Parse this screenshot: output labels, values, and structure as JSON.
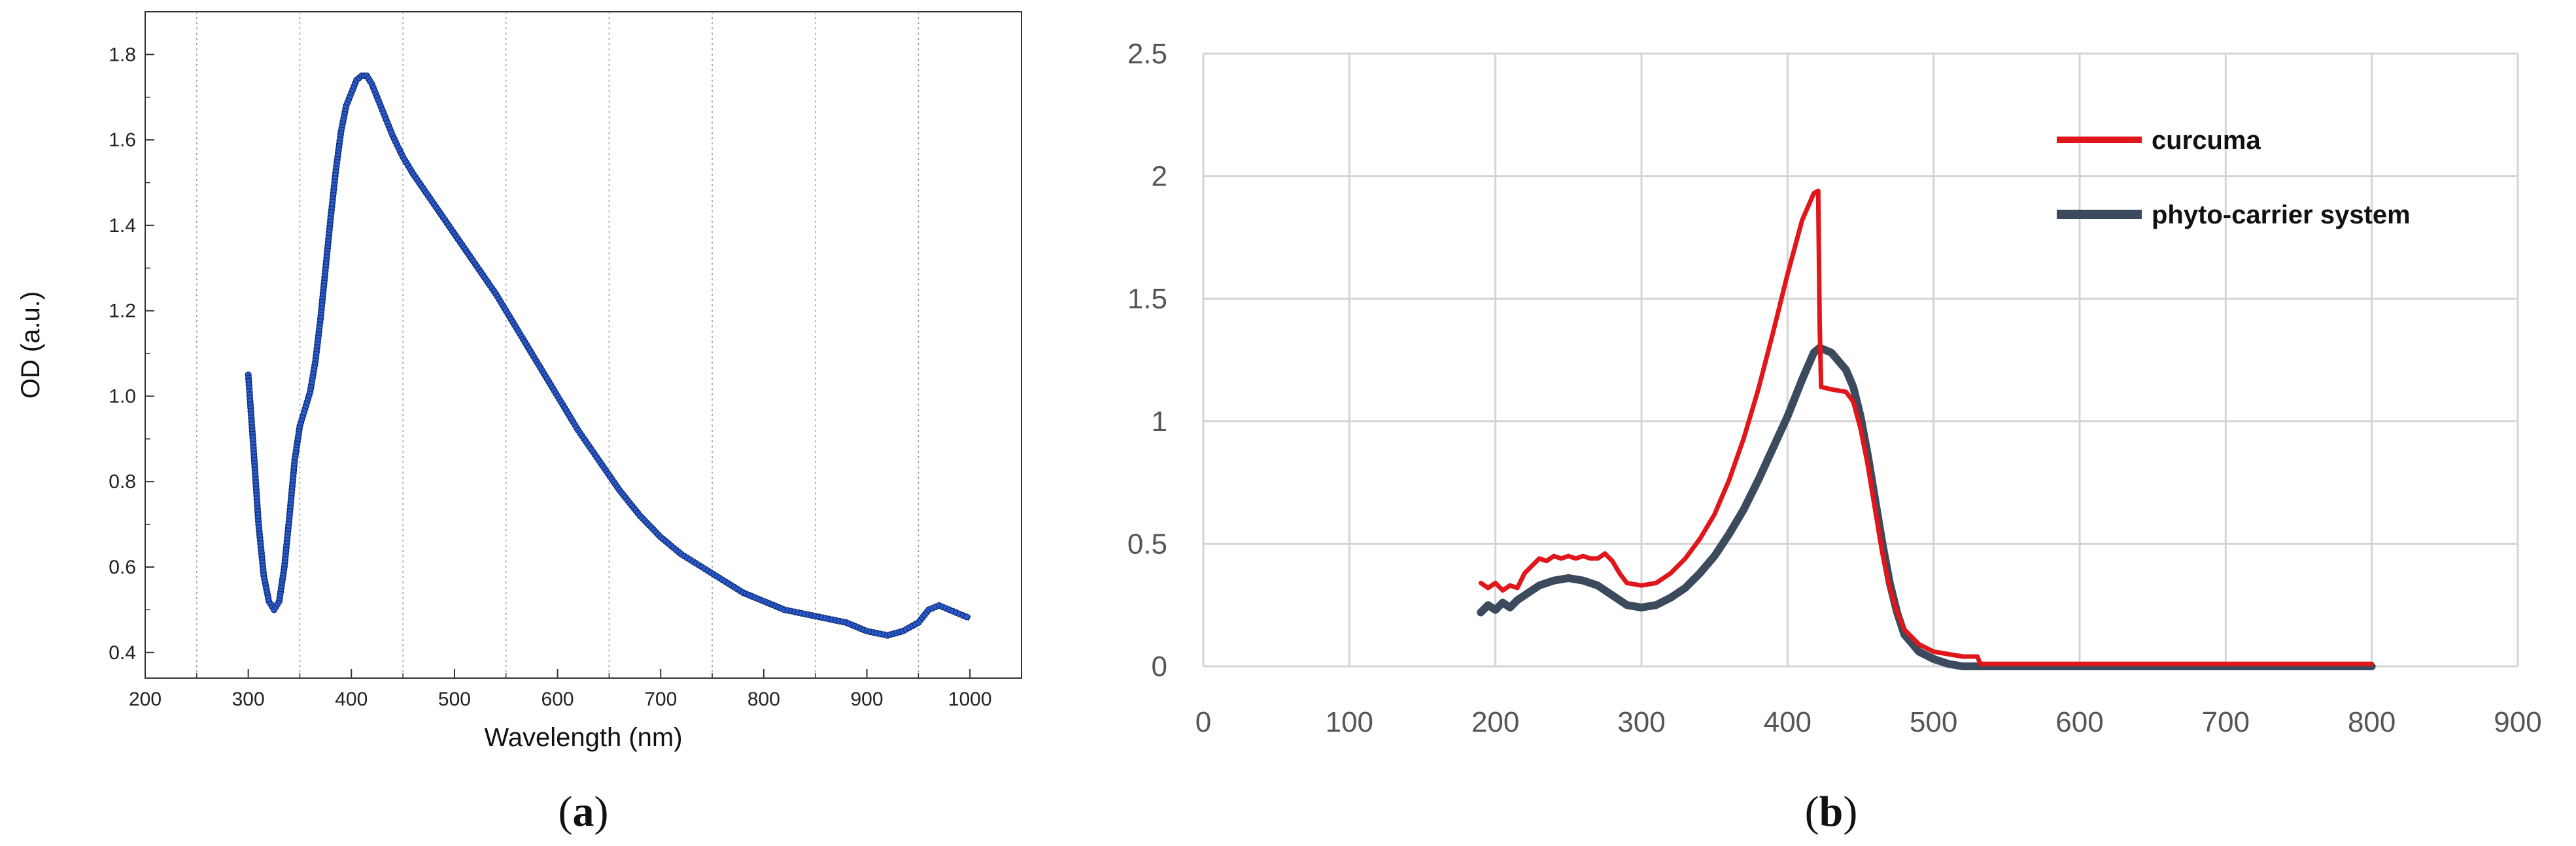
{
  "chart_data": [
    {
      "type": "line",
      "panel_label": "a",
      "xlabel": "Wavelength (nm)",
      "ylabel": "OD (a.u.)",
      "xlim": [
        200,
        1050
      ],
      "ylim": [
        0.34,
        1.9
      ],
      "xticks": [
        "200",
        "300",
        "400",
        "500",
        "600",
        "700",
        "800",
        "900",
        "1000"
      ],
      "yticks": [
        "0.4",
        "0.6",
        "0.8",
        "1.0",
        "1.2",
        "1.4",
        "1.6",
        "1.8"
      ],
      "grid": "vertical dotted",
      "series": [
        {
          "color": "#1f3f9a",
          "marker": "circle",
          "points": [
            [
              300,
              1.05
            ],
            [
              305,
              0.88
            ],
            [
              310,
              0.7
            ],
            [
              315,
              0.58
            ],
            [
              320,
              0.52
            ],
            [
              325,
              0.5
            ],
            [
              330,
              0.52
            ],
            [
              335,
              0.6
            ],
            [
              340,
              0.72
            ],
            [
              345,
              0.85
            ],
            [
              350,
              0.93
            ],
            [
              355,
              0.97
            ],
            [
              360,
              1.01
            ],
            [
              365,
              1.08
            ],
            [
              370,
              1.18
            ],
            [
              375,
              1.3
            ],
            [
              380,
              1.42
            ],
            [
              385,
              1.53
            ],
            [
              390,
              1.62
            ],
            [
              395,
              1.68
            ],
            [
              400,
              1.71
            ],
            [
              405,
              1.74
            ],
            [
              410,
              1.75
            ],
            [
              415,
              1.75
            ],
            [
              420,
              1.73
            ],
            [
              425,
              1.7
            ],
            [
              430,
              1.67
            ],
            [
              440,
              1.61
            ],
            [
              450,
              1.56
            ],
            [
              460,
              1.52
            ],
            [
              480,
              1.45
            ],
            [
              500,
              1.38
            ],
            [
              520,
              1.31
            ],
            [
              540,
              1.24
            ],
            [
              560,
              1.16
            ],
            [
              580,
              1.08
            ],
            [
              600,
              1.0
            ],
            [
              620,
              0.92
            ],
            [
              640,
              0.85
            ],
            [
              660,
              0.78
            ],
            [
              680,
              0.72
            ],
            [
              700,
              0.67
            ],
            [
              720,
              0.63
            ],
            [
              740,
              0.6
            ],
            [
              760,
              0.57
            ],
            [
              780,
              0.54
            ],
            [
              800,
              0.52
            ],
            [
              820,
              0.5
            ],
            [
              840,
              0.49
            ],
            [
              860,
              0.48
            ],
            [
              880,
              0.47
            ],
            [
              900,
              0.45
            ],
            [
              920,
              0.44
            ],
            [
              935,
              0.45
            ],
            [
              950,
              0.47
            ],
            [
              960,
              0.5
            ],
            [
              970,
              0.51
            ],
            [
              980,
              0.5
            ],
            [
              990,
              0.49
            ],
            [
              1000,
              0.48
            ]
          ]
        }
      ]
    },
    {
      "type": "line",
      "panel_label": "b",
      "xlabel": "",
      "ylabel": "",
      "xlim": [
        0,
        900
      ],
      "ylim": [
        0,
        2.5
      ],
      "xticks": [
        "0",
        "100",
        "200",
        "300",
        "400",
        "500",
        "600",
        "700",
        "800",
        "900"
      ],
      "yticks": [
        "0",
        "0.5",
        "1",
        "1.5",
        "2",
        "2.5"
      ],
      "grid": "both",
      "legend_position": "top-right",
      "series": [
        {
          "name": "curcuma",
          "color": "#e0161b",
          "points": [
            [
              190,
              0.34
            ],
            [
              195,
              0.32
            ],
            [
              200,
              0.34
            ],
            [
              205,
              0.31
            ],
            [
              210,
              0.33
            ],
            [
              215,
              0.32
            ],
            [
              220,
              0.38
            ],
            [
              225,
              0.41
            ],
            [
              230,
              0.44
            ],
            [
              235,
              0.43
            ],
            [
              240,
              0.45
            ],
            [
              245,
              0.44
            ],
            [
              250,
              0.45
            ],
            [
              255,
              0.44
            ],
            [
              260,
              0.45
            ],
            [
              265,
              0.44
            ],
            [
              270,
              0.44
            ],
            [
              275,
              0.46
            ],
            [
              280,
              0.43
            ],
            [
              285,
              0.38
            ],
            [
              290,
              0.34
            ],
            [
              300,
              0.33
            ],
            [
              310,
              0.34
            ],
            [
              320,
              0.38
            ],
            [
              330,
              0.44
            ],
            [
              340,
              0.52
            ],
            [
              350,
              0.62
            ],
            [
              360,
              0.76
            ],
            [
              370,
              0.93
            ],
            [
              380,
              1.13
            ],
            [
              390,
              1.36
            ],
            [
              400,
              1.6
            ],
            [
              410,
              1.82
            ],
            [
              418,
              1.93
            ],
            [
              421,
              1.94
            ],
            [
              422,
              1.4
            ],
            [
              423,
              1.14
            ],
            [
              430,
              1.13
            ],
            [
              440,
              1.12
            ],
            [
              445,
              1.08
            ],
            [
              450,
              0.97
            ],
            [
              455,
              0.82
            ],
            [
              460,
              0.64
            ],
            [
              465,
              0.46
            ],
            [
              470,
              0.32
            ],
            [
              475,
              0.22
            ],
            [
              480,
              0.15
            ],
            [
              490,
              0.09
            ],
            [
              500,
              0.06
            ],
            [
              510,
              0.05
            ],
            [
              520,
              0.04
            ],
            [
              530,
              0.04
            ],
            [
              532,
              0.01
            ],
            [
              540,
              0.01
            ],
            [
              600,
              0.01
            ],
            [
              700,
              0.01
            ],
            [
              800,
              0.01
            ]
          ]
        },
        {
          "name": "phyto-carrier system",
          "color": "#3b4a5c",
          "points": [
            [
              190,
              0.22
            ],
            [
              195,
              0.25
            ],
            [
              200,
              0.23
            ],
            [
              205,
              0.26
            ],
            [
              210,
              0.24
            ],
            [
              215,
              0.27
            ],
            [
              220,
              0.29
            ],
            [
              225,
              0.31
            ],
            [
              230,
              0.33
            ],
            [
              240,
              0.35
            ],
            [
              250,
              0.36
            ],
            [
              260,
              0.35
            ],
            [
              270,
              0.33
            ],
            [
              280,
              0.29
            ],
            [
              290,
              0.25
            ],
            [
              300,
              0.24
            ],
            [
              310,
              0.25
            ],
            [
              320,
              0.28
            ],
            [
              330,
              0.32
            ],
            [
              340,
              0.38
            ],
            [
              350,
              0.45
            ],
            [
              360,
              0.54
            ],
            [
              370,
              0.64
            ],
            [
              380,
              0.76
            ],
            [
              390,
              0.89
            ],
            [
              400,
              1.02
            ],
            [
              410,
              1.17
            ],
            [
              418,
              1.28
            ],
            [
              422,
              1.3
            ],
            [
              430,
              1.28
            ],
            [
              440,
              1.21
            ],
            [
              445,
              1.14
            ],
            [
              450,
              1.02
            ],
            [
              455,
              0.86
            ],
            [
              460,
              0.68
            ],
            [
              465,
              0.5
            ],
            [
              470,
              0.34
            ],
            [
              475,
              0.22
            ],
            [
              480,
              0.13
            ],
            [
              490,
              0.06
            ],
            [
              500,
              0.03
            ],
            [
              510,
              0.01
            ],
            [
              520,
              0.0
            ],
            [
              600,
              0.0
            ],
            [
              700,
              0.0
            ],
            [
              800,
              0.0
            ]
          ]
        }
      ]
    }
  ]
}
